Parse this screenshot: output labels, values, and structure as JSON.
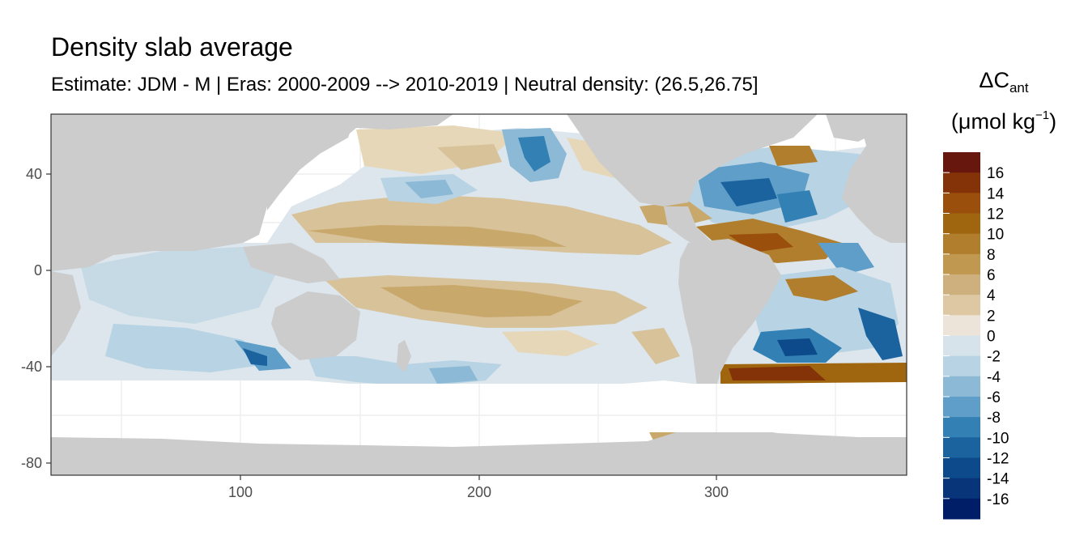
{
  "title": "Density slab average",
  "subtitle": "Estimate: JDM - M | Eras: 2000-2009 --> 2010-2019 | Neutral density: (26.5,26.75]",
  "legend": {
    "title_symbol": "ΔC",
    "title_subscript": "ant",
    "unit_prefix": "(μmol kg",
    "unit_superscript": "−1",
    "unit_suffix": ")",
    "labels": [
      "16",
      "14",
      "12",
      "10",
      "8",
      "6",
      "4",
      "2",
      "0",
      "-2",
      "-4",
      "-6",
      "-8",
      "-10",
      "-12",
      "-14",
      "-16"
    ],
    "colors": [
      "#67170d",
      "#843308",
      "#9a4f0d",
      "#a0660f",
      "#b07e2c",
      "#c09850",
      "#cdb07d",
      "#ddc8a3",
      "#ece4d8",
      "#d7e3ea",
      "#b8d3e4",
      "#8bb9d6",
      "#5e9ec8",
      "#3280b4",
      "#1a639e",
      "#0c4a8b",
      "#08347a",
      "#001e67"
    ]
  },
  "axes": {
    "x_ticks": [
      "100",
      "200",
      "300"
    ],
    "y_ticks": [
      "40",
      "0",
      "-40",
      "-80"
    ]
  },
  "colors": {
    "land": "#cccccc",
    "no_data": "#ffffff",
    "grid": "#ebebeb",
    "panel_border": "#333333"
  }
}
